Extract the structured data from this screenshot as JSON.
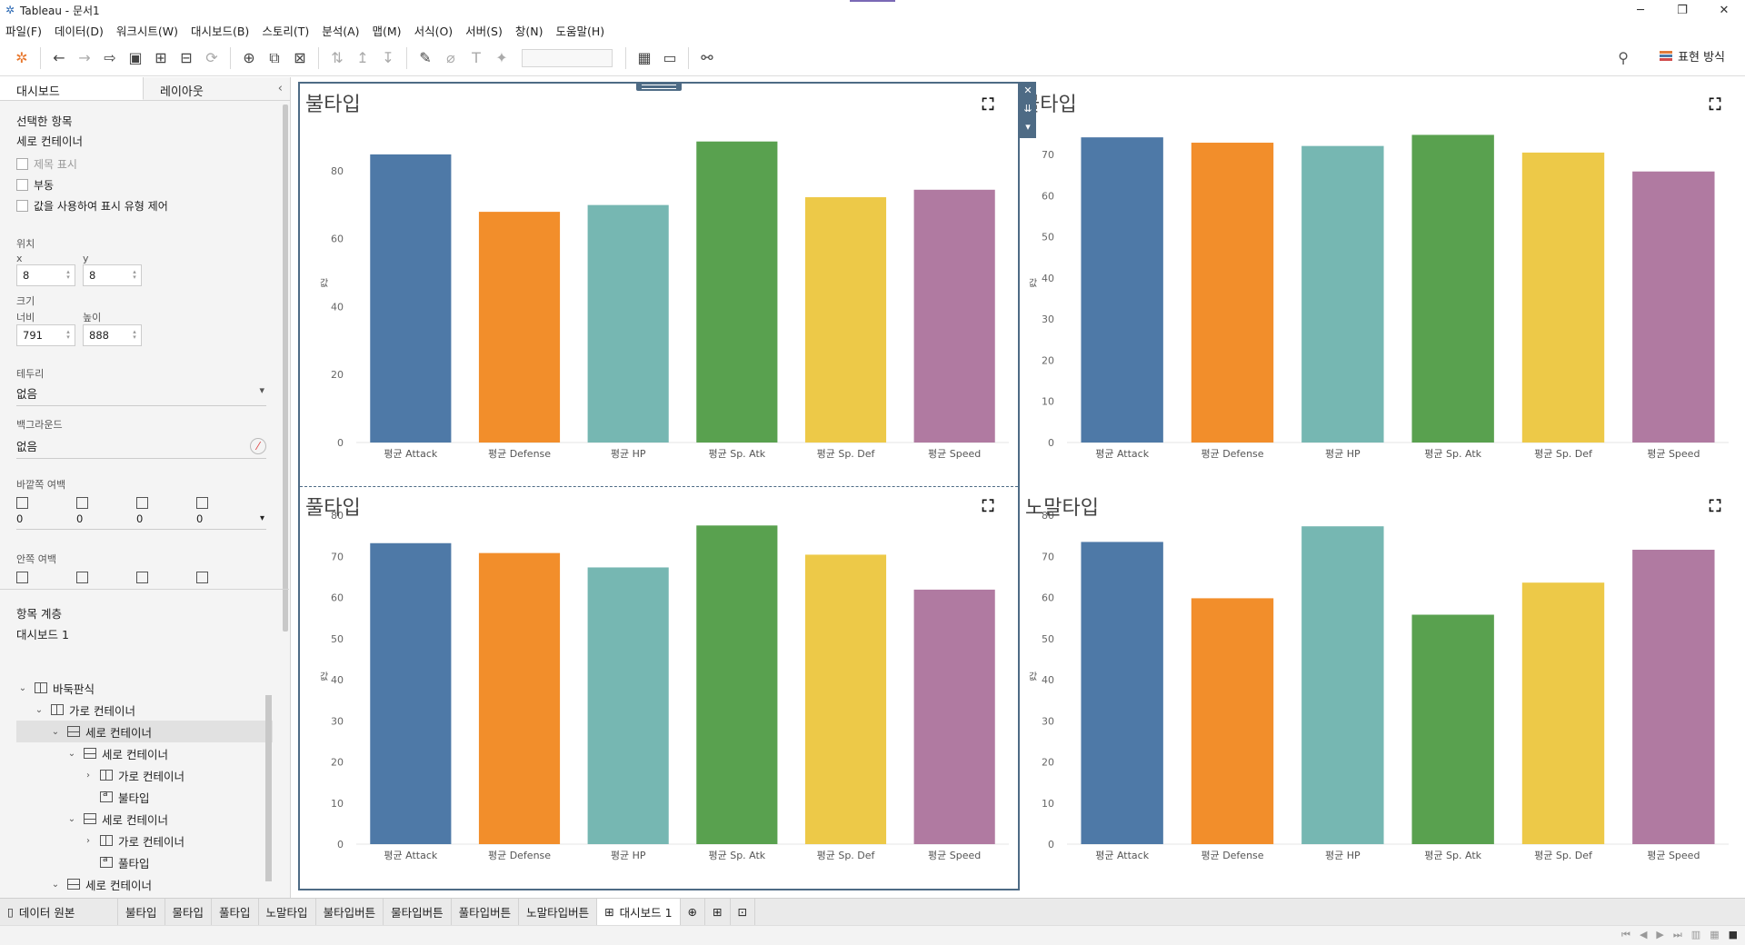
{
  "window": {
    "title": "Tableau - 문서1",
    "controls": [
      "─",
      "❐",
      "✕"
    ]
  },
  "menu": [
    "파일(F)",
    "데이터(D)",
    "워크시트(W)",
    "대시보드(B)",
    "스토리(T)",
    "분석(A)",
    "맵(M)",
    "서식(O)",
    "서버(S)",
    "창(N)",
    "도움말(H)"
  ],
  "toolbar": {
    "show_me": "표현 방식"
  },
  "left_pane": {
    "tabs": [
      "대시보드",
      "레이아웃"
    ],
    "selected_item_label": "선택한 항목",
    "selected_item_value": "세로 컨테이너",
    "checkboxes": [
      "제목 표시",
      "부동",
      "값을 사용하여 표시 유형 제어"
    ],
    "position_label": "위치",
    "x_label": "x",
    "x_value": "8",
    "y_label": "y",
    "y_value": "8",
    "size_label": "크기",
    "width_label": "너비",
    "width_value": "791",
    "height_label": "높이",
    "height_value": "888",
    "border_label": "테두리",
    "border_value": "없음",
    "background_label": "백그라운드",
    "background_value": "없음",
    "outer_padding_label": "바깥쪽 여백",
    "outer_padding_values": [
      "0",
      "0",
      "0",
      "0"
    ],
    "inner_padding_label": "안쪽 여백",
    "hierarchy_label": "항목 계층",
    "hierarchy_root": "대시보드 1",
    "tree": [
      {
        "label": "바둑판식",
        "indent": 0,
        "chev": "⌄",
        "icon": "h"
      },
      {
        "label": "가로 컨테이너",
        "indent": 1,
        "chev": "⌄",
        "icon": "h"
      },
      {
        "label": "세로 컨테이너",
        "indent": 2,
        "chev": "⌄",
        "icon": "v",
        "selected": true
      },
      {
        "label": "세로 컨테이너",
        "indent": 3,
        "chev": "⌄",
        "icon": "v"
      },
      {
        "label": "가로 컨테이너",
        "indent": 4,
        "chev": "›",
        "icon": "h"
      },
      {
        "label": "불타입",
        "indent": 4,
        "chev": "",
        "icon": "txt"
      },
      {
        "label": "세로 컨테이너",
        "indent": 3,
        "chev": "⌄",
        "icon": "v"
      },
      {
        "label": "가로 컨테이너",
        "indent": 4,
        "chev": "›",
        "icon": "h"
      },
      {
        "label": "풀타입",
        "indent": 4,
        "chev": "",
        "icon": "txt"
      },
      {
        "label": "세로 컨테이너",
        "indent": 2,
        "chev": "⌄",
        "icon": "v"
      },
      {
        "label": "세로 컨테이너",
        "indent": 3,
        "chev": "⌄",
        "icon": "v"
      }
    ]
  },
  "colors": [
    "#4e79a7",
    "#f28e2b",
    "#76b7b2",
    "#59a14f",
    "#edc948",
    "#b07aa1"
  ],
  "chart_data": [
    {
      "type": "bar",
      "title": "불타입",
      "ylabel": "값",
      "categories": [
        "평균 Attack",
        "평균 Defense",
        "평균 HP",
        "평균 Sp. Atk",
        "평균 Sp. Def",
        "평균 Speed"
      ],
      "values": [
        84.8,
        67.9,
        69.9,
        88.6,
        72.2,
        74.4
      ],
      "yticks": [
        0,
        20,
        40,
        60,
        80
      ],
      "ylim": [
        0,
        92
      ]
    },
    {
      "type": "bar",
      "title": "물타입",
      "ylabel": "값",
      "categories": [
        "평균 Attack",
        "평균 Defense",
        "평균 HP",
        "평균 Sp. Atk",
        "평균 Sp. Def",
        "평균 Speed"
      ],
      "values": [
        74.2,
        72.9,
        72.1,
        74.8,
        70.5,
        65.9
      ],
      "yticks": [
        0,
        10,
        20,
        30,
        40,
        50,
        60,
        70
      ],
      "ylim": [
        0,
        76
      ]
    },
    {
      "type": "bar",
      "title": "풀타입",
      "ylabel": "값",
      "categories": [
        "평균 Attack",
        "평균 Defense",
        "평균 HP",
        "평균 Sp. Atk",
        "평균 Sp. Def",
        "평균 Speed"
      ],
      "values": [
        73.2,
        70.8,
        67.3,
        77.5,
        70.4,
        61.9
      ],
      "yticks": [
        0,
        10,
        20,
        30,
        40,
        50,
        60,
        70,
        80
      ],
      "ylim": [
        0,
        80
      ]
    },
    {
      "type": "bar",
      "title": "노말타입",
      "ylabel": "값",
      "categories": [
        "평균 Attack",
        "평균 Defense",
        "평균 HP",
        "평균 Sp. Atk",
        "평균 Sp. Def",
        "평균 Speed"
      ],
      "values": [
        73.5,
        59.8,
        77.3,
        55.8,
        63.6,
        71.6
      ],
      "yticks": [
        0,
        10,
        20,
        30,
        40,
        50,
        60,
        70,
        80
      ],
      "ylim": [
        0,
        80
      ]
    }
  ],
  "sheet_tabs": {
    "data_source": "데이터 원본",
    "tabs": [
      "불타입",
      "물타입",
      "풀타입",
      "노말타입",
      "불타입버튼",
      "물타입버튼",
      "풀타입버튼",
      "노말타입버튼",
      "대시보드 1"
    ],
    "active": "대시보드 1"
  }
}
